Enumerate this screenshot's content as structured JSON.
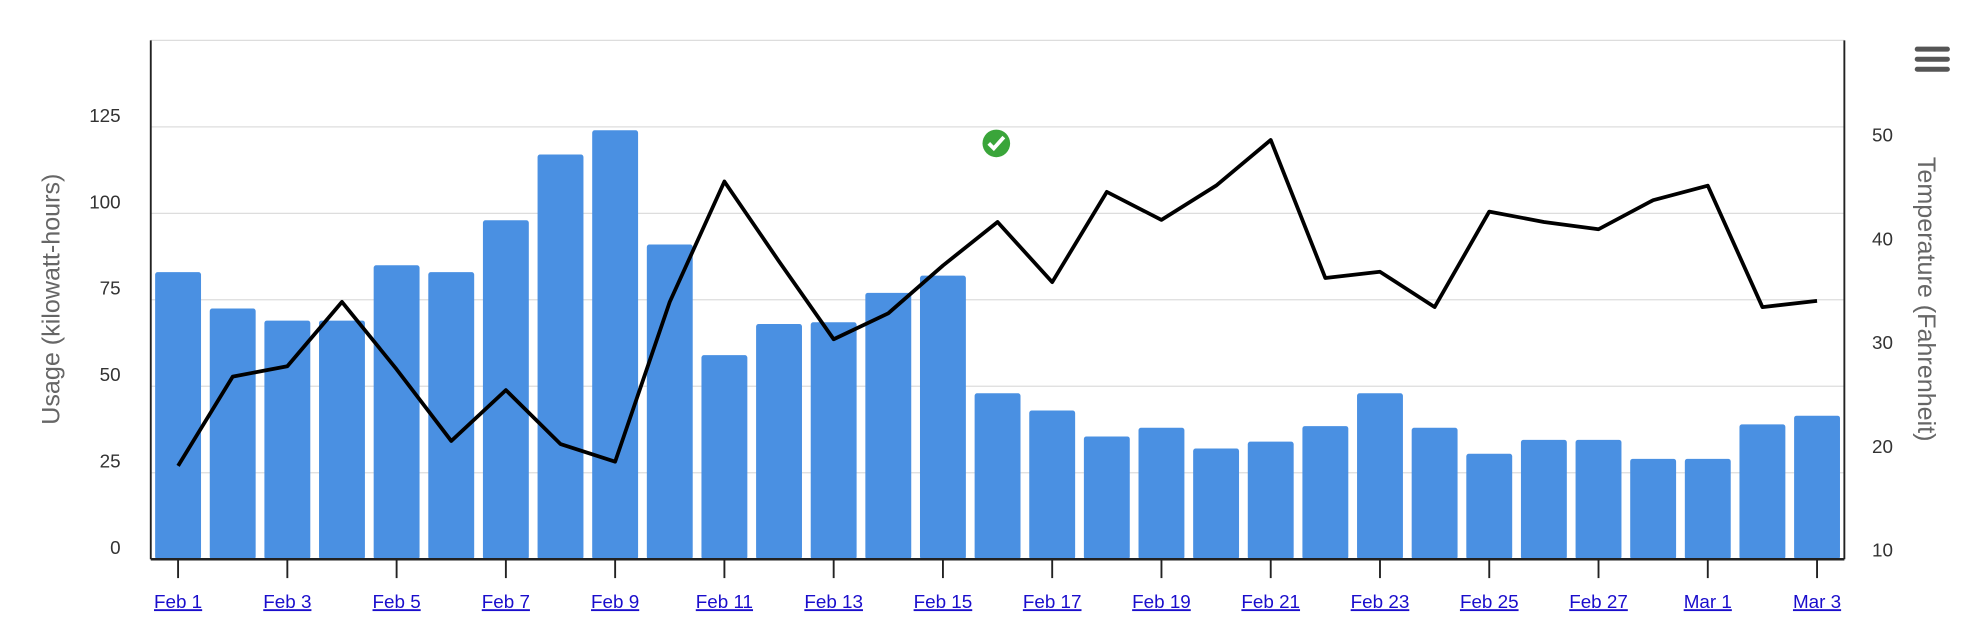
{
  "chart_data": {
    "type": "bar",
    "categories": [
      "Feb 1",
      null,
      "Feb 3",
      null,
      "Feb 5",
      null,
      "Feb 7",
      null,
      "Feb 9",
      null,
      "Feb 11",
      null,
      "Feb 13",
      null,
      "Feb 15",
      null,
      "Feb 17",
      null,
      "Feb 19",
      null,
      "Feb 21",
      null,
      "Feb 23",
      null,
      "Feb 25",
      null,
      "Feb 27",
      null,
      "Mar 1",
      null,
      "Mar 3"
    ],
    "series": [
      {
        "type": "bar",
        "color": "#4a90e2",
        "values": [
          83,
          72.5,
          69,
          69,
          85,
          83,
          98,
          117,
          124,
          91,
          59,
          68,
          68.5,
          77,
          82,
          48,
          43,
          35.5,
          38,
          32,
          34,
          38.5,
          48,
          38,
          30.5,
          34.5,
          34.5,
          29,
          29,
          39,
          41.5
        ]
      },
      {
        "type": "line",
        "axis": "y2",
        "color": "#000000",
        "values": [
          19,
          27.6,
          28.6,
          34.8,
          28.3,
          21.4,
          26.3,
          21.1,
          19.4,
          34.8,
          46.4,
          38.7,
          31.2,
          33.7,
          38.3,
          42.5,
          36.7,
          45.4,
          42.7,
          46,
          50.4,
          37.1,
          37.7,
          34.3,
          43.5,
          42.5,
          41.8,
          44.6,
          46,
          34.3,
          34.9
        ]
      }
    ],
    "ylabel": "Usage (kilowatt-hours)",
    "y2label": "Temperature (Fahrenheit)",
    "ylim": [
      0,
      150
    ],
    "yticks": [
      0,
      25,
      50,
      75,
      100,
      125
    ],
    "y2lim": [
      10,
      60
    ],
    "y2ticks": [
      10,
      20,
      30,
      40,
      50
    ],
    "grid": true
  }
}
